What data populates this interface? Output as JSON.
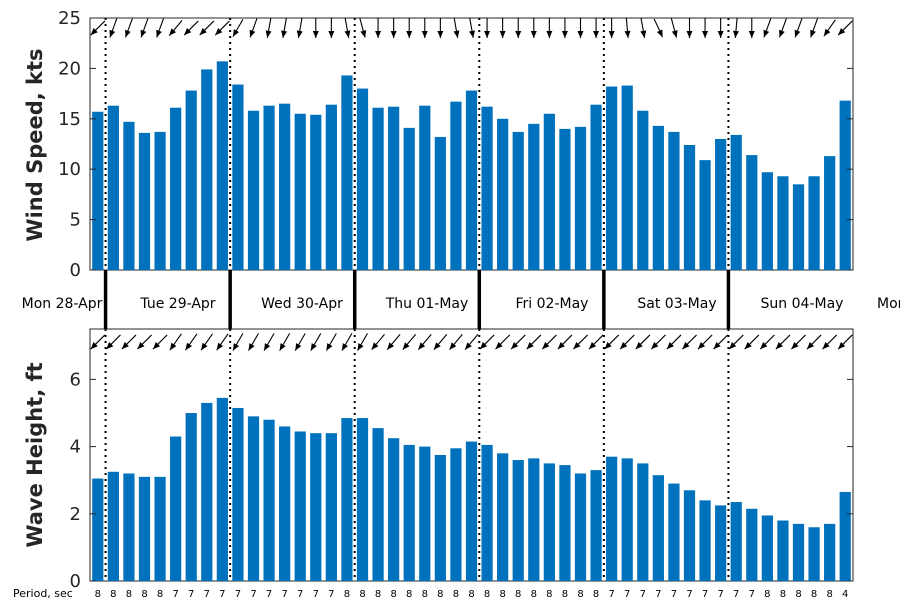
{
  "chart_data": [
    {
      "type": "bar",
      "ylabel": "Wind Speed, kts",
      "ylim": [
        0,
        25
      ],
      "yticks": [
        0,
        5,
        10,
        15,
        20,
        25
      ],
      "color": "#0072BD",
      "grid": false,
      "values": [
        15.7,
        16.3,
        14.7,
        13.6,
        13.7,
        16.1,
        17.8,
        19.9,
        20.7,
        18.4,
        15.8,
        16.3,
        16.5,
        15.5,
        15.4,
        16.4,
        19.3,
        18.0,
        16.1,
        16.2,
        14.1,
        16.3,
        13.2,
        16.7,
        17.8,
        16.2,
        15.0,
        13.7,
        14.5,
        15.5,
        14.0,
        14.2,
        16.4,
        18.2,
        18.3,
        15.8,
        14.3,
        13.7,
        12.4,
        10.9,
        13.0,
        13.4,
        11.4,
        9.7,
        9.3,
        8.5,
        9.3,
        11.3,
        16.8
      ],
      "direction_arrows_deg": [
        225,
        250,
        250,
        250,
        250,
        230,
        225,
        225,
        225,
        240,
        250,
        260,
        260,
        260,
        270,
        270,
        280,
        285,
        270,
        270,
        270,
        270,
        270,
        280,
        280,
        270,
        270,
        270,
        270,
        270,
        270,
        270,
        270,
        270,
        275,
        280,
        295,
        285,
        270,
        270,
        270,
        265,
        270,
        250,
        250,
        250,
        250,
        235,
        225
      ]
    },
    {
      "type": "bar",
      "ylabel": "Wave Height, ft",
      "ylim": [
        0,
        7.5
      ],
      "yticks": [
        0,
        2,
        4,
        6
      ],
      "color": "#0072BD",
      "grid": false,
      "values": [
        3.05,
        3.25,
        3.2,
        3.1,
        3.1,
        4.3,
        5.0,
        5.3,
        5.45,
        5.15,
        4.9,
        4.8,
        4.6,
        4.45,
        4.4,
        4.4,
        4.85,
        4.85,
        4.55,
        4.25,
        4.05,
        4.0,
        3.75,
        3.95,
        4.15,
        4.05,
        3.8,
        3.6,
        3.65,
        3.5,
        3.45,
        3.2,
        3.3,
        3.7,
        3.65,
        3.5,
        3.15,
        2.9,
        2.7,
        2.4,
        2.25,
        2.35,
        2.15,
        1.95,
        1.8,
        1.7,
        1.6,
        1.7,
        2.65
      ],
      "direction_arrows_deg": [
        225,
        225,
        225,
        225,
        225,
        235,
        235,
        235,
        235,
        240,
        240,
        240,
        240,
        240,
        240,
        240,
        240,
        240,
        230,
        230,
        230,
        230,
        230,
        230,
        230,
        225,
        225,
        225,
        225,
        225,
        225,
        225,
        225,
        225,
        225,
        225,
        225,
        225,
        225,
        225,
        225,
        225,
        225,
        225,
        225,
        225,
        225,
        225,
        225
      ]
    }
  ],
  "days": [
    "Mon 28-Apr",
    "Tue 29-Apr",
    "Wed 30-Apr",
    "Thu 01-May",
    "Fri 02-May",
    "Sat 03-May",
    "Sun 04-May",
    "Mon"
  ],
  "period_title": "Period, sec",
  "periods": [
    "8",
    "8",
    "8",
    "8",
    "8",
    "7",
    "7",
    "7",
    "7",
    "7",
    "7",
    "7",
    "7",
    "7",
    "7",
    "7",
    "8",
    "8",
    "8",
    "8",
    "8",
    "8",
    "8",
    "8",
    "8",
    "8",
    "8",
    "8",
    "8",
    "8",
    "8",
    "8",
    "8",
    "7",
    "7",
    "7",
    "7",
    "7",
    "7",
    "7",
    "7",
    "7",
    "7",
    "8",
    "8",
    "8",
    "8",
    "8",
    "4"
  ]
}
